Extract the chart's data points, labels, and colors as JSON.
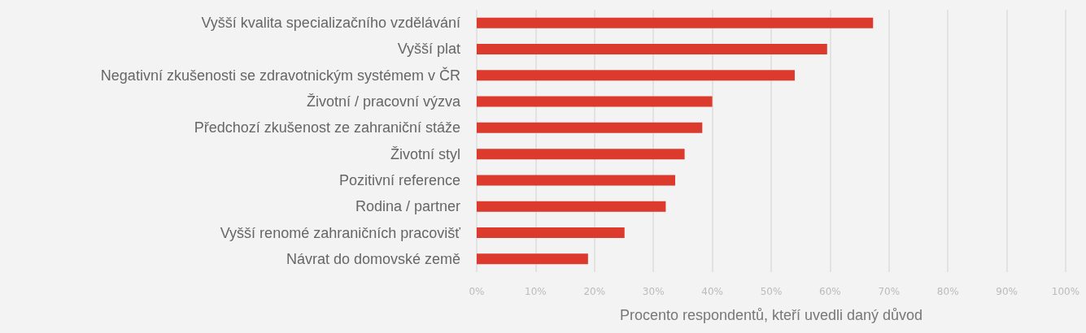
{
  "chart_data": {
    "type": "bar",
    "orientation": "horizontal",
    "xlabel": "Procento respondentů, kteří uvedli daný důvod",
    "categories": [
      "Vyšší kvalita specializačního vzdělávání",
      "Vyšší plat",
      "Negativní zkušenosti se zdravotnickým systémem v ČR",
      "Životní / pracovní výzva",
      "Předchozí zkušenost ze zahraniční stáže",
      "Životní styl",
      "Pozitivní reference",
      "Rodina / partner",
      "Vyšší renomé zahraničních pracovišť",
      "Návrat do domovské země"
    ],
    "values": [
      67.3,
      59.5,
      54,
      40,
      38.3,
      35.3,
      33.7,
      32.1,
      25.1,
      18.9
    ],
    "color": "#db3a2d",
    "xlim": [
      0,
      100
    ],
    "xticks": [
      {
        "value": 0,
        "label": "0%"
      },
      {
        "value": 10,
        "label": "10%"
      },
      {
        "value": 20,
        "label": "20%"
      },
      {
        "value": 30,
        "label": "30%"
      },
      {
        "value": 40,
        "label": "40%"
      },
      {
        "value": 50,
        "label": "50%"
      },
      {
        "value": 60,
        "label": "60%"
      },
      {
        "value": 70,
        "label": "70%"
      },
      {
        "value": 80,
        "label": "80%"
      },
      {
        "value": 90,
        "label": "90%"
      },
      {
        "value": 100,
        "label": "100%"
      }
    ],
    "grid": "x"
  }
}
